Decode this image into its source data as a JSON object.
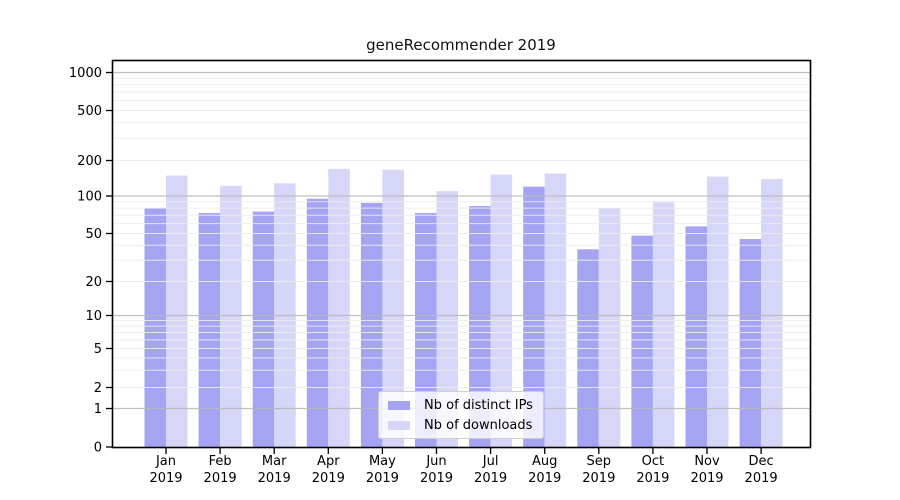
{
  "figure": {
    "background": "#ffffff"
  },
  "chart_data": {
    "type": "bar",
    "title": "geneRecommender 2019",
    "categories": [
      "Jan",
      "Feb",
      "Mar",
      "Apr",
      "May",
      "Jun",
      "Jul",
      "Aug",
      "Sep",
      "Oct",
      "Nov",
      "Dec"
    ],
    "category_year": "2019",
    "series": [
      {
        "name": "Nb of distinct IPs",
        "color": "#a4a4f2",
        "values": [
          80,
          73,
          75,
          95,
          88,
          73,
          83,
          120,
          37,
          48,
          57,
          45
        ]
      },
      {
        "name": "Nb of downloads",
        "color": "#d6d6f8",
        "values": [
          149,
          122,
          128,
          170,
          167,
          110,
          152,
          155,
          80,
          89,
          146,
          139
        ]
      }
    ],
    "yticks": [
      0,
      1,
      2,
      5,
      10,
      20,
      50,
      100,
      200,
      500,
      1000
    ],
    "ylim": [
      0,
      1000
    ],
    "yscale": "log-like (ticks at 1,2,5 per decade, 0 at baseline)",
    "grid": "horizontal; light minor lines, gray lines at powers of 10",
    "legend_position": "inside bottom-center",
    "minor_grid_values": [
      2,
      3,
      4,
      5,
      6,
      7,
      8,
      9,
      20,
      30,
      40,
      50,
      60,
      70,
      80,
      90,
      200,
      300,
      400,
      500,
      600,
      700,
      800,
      900
    ],
    "major_grid_values": [
      1,
      10,
      100,
      1000
    ]
  },
  "colors": {
    "major_grid": "#b9b9b9",
    "minor_grid": "#ececec",
    "axis": "#000000",
    "tick_text": "#000000"
  }
}
